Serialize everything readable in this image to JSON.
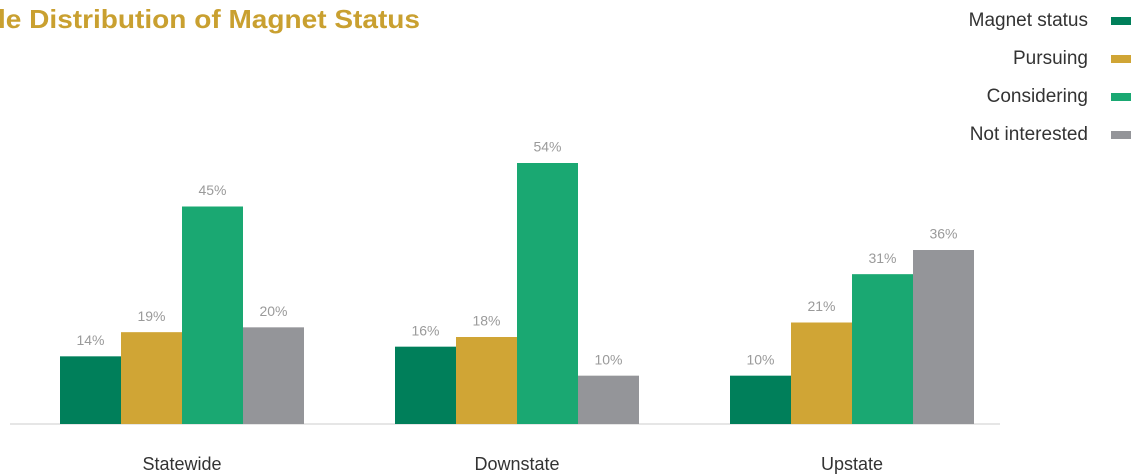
{
  "chart_data": {
    "type": "bar",
    "title": "le Distribution of Magnet Status",
    "categories": [
      "Statewide",
      "Downstate",
      "Upstate"
    ],
    "series": [
      {
        "name": "Magnet status",
        "color": "#007f5a",
        "values": [
          14,
          16,
          10
        ],
        "value_labels": [
          "14%",
          "16%",
          "10%"
        ]
      },
      {
        "name": "Pursuing",
        "color": "#d0a535",
        "values": [
          19,
          18,
          21
        ],
        "value_labels": [
          "19%",
          "18%",
          "21%"
        ]
      },
      {
        "name": "Considering",
        "color": "#1aa872",
        "values": [
          45,
          54,
          31
        ],
        "value_labels": [
          "45%",
          "54%",
          "31%"
        ]
      },
      {
        "name": "Not interested",
        "color": "#949599",
        "values": [
          20,
          10,
          36
        ],
        "value_labels": [
          "20%",
          "10%",
          "36%"
        ]
      }
    ],
    "ylim": [
      0,
      60
    ],
    "legend": "top-right"
  }
}
